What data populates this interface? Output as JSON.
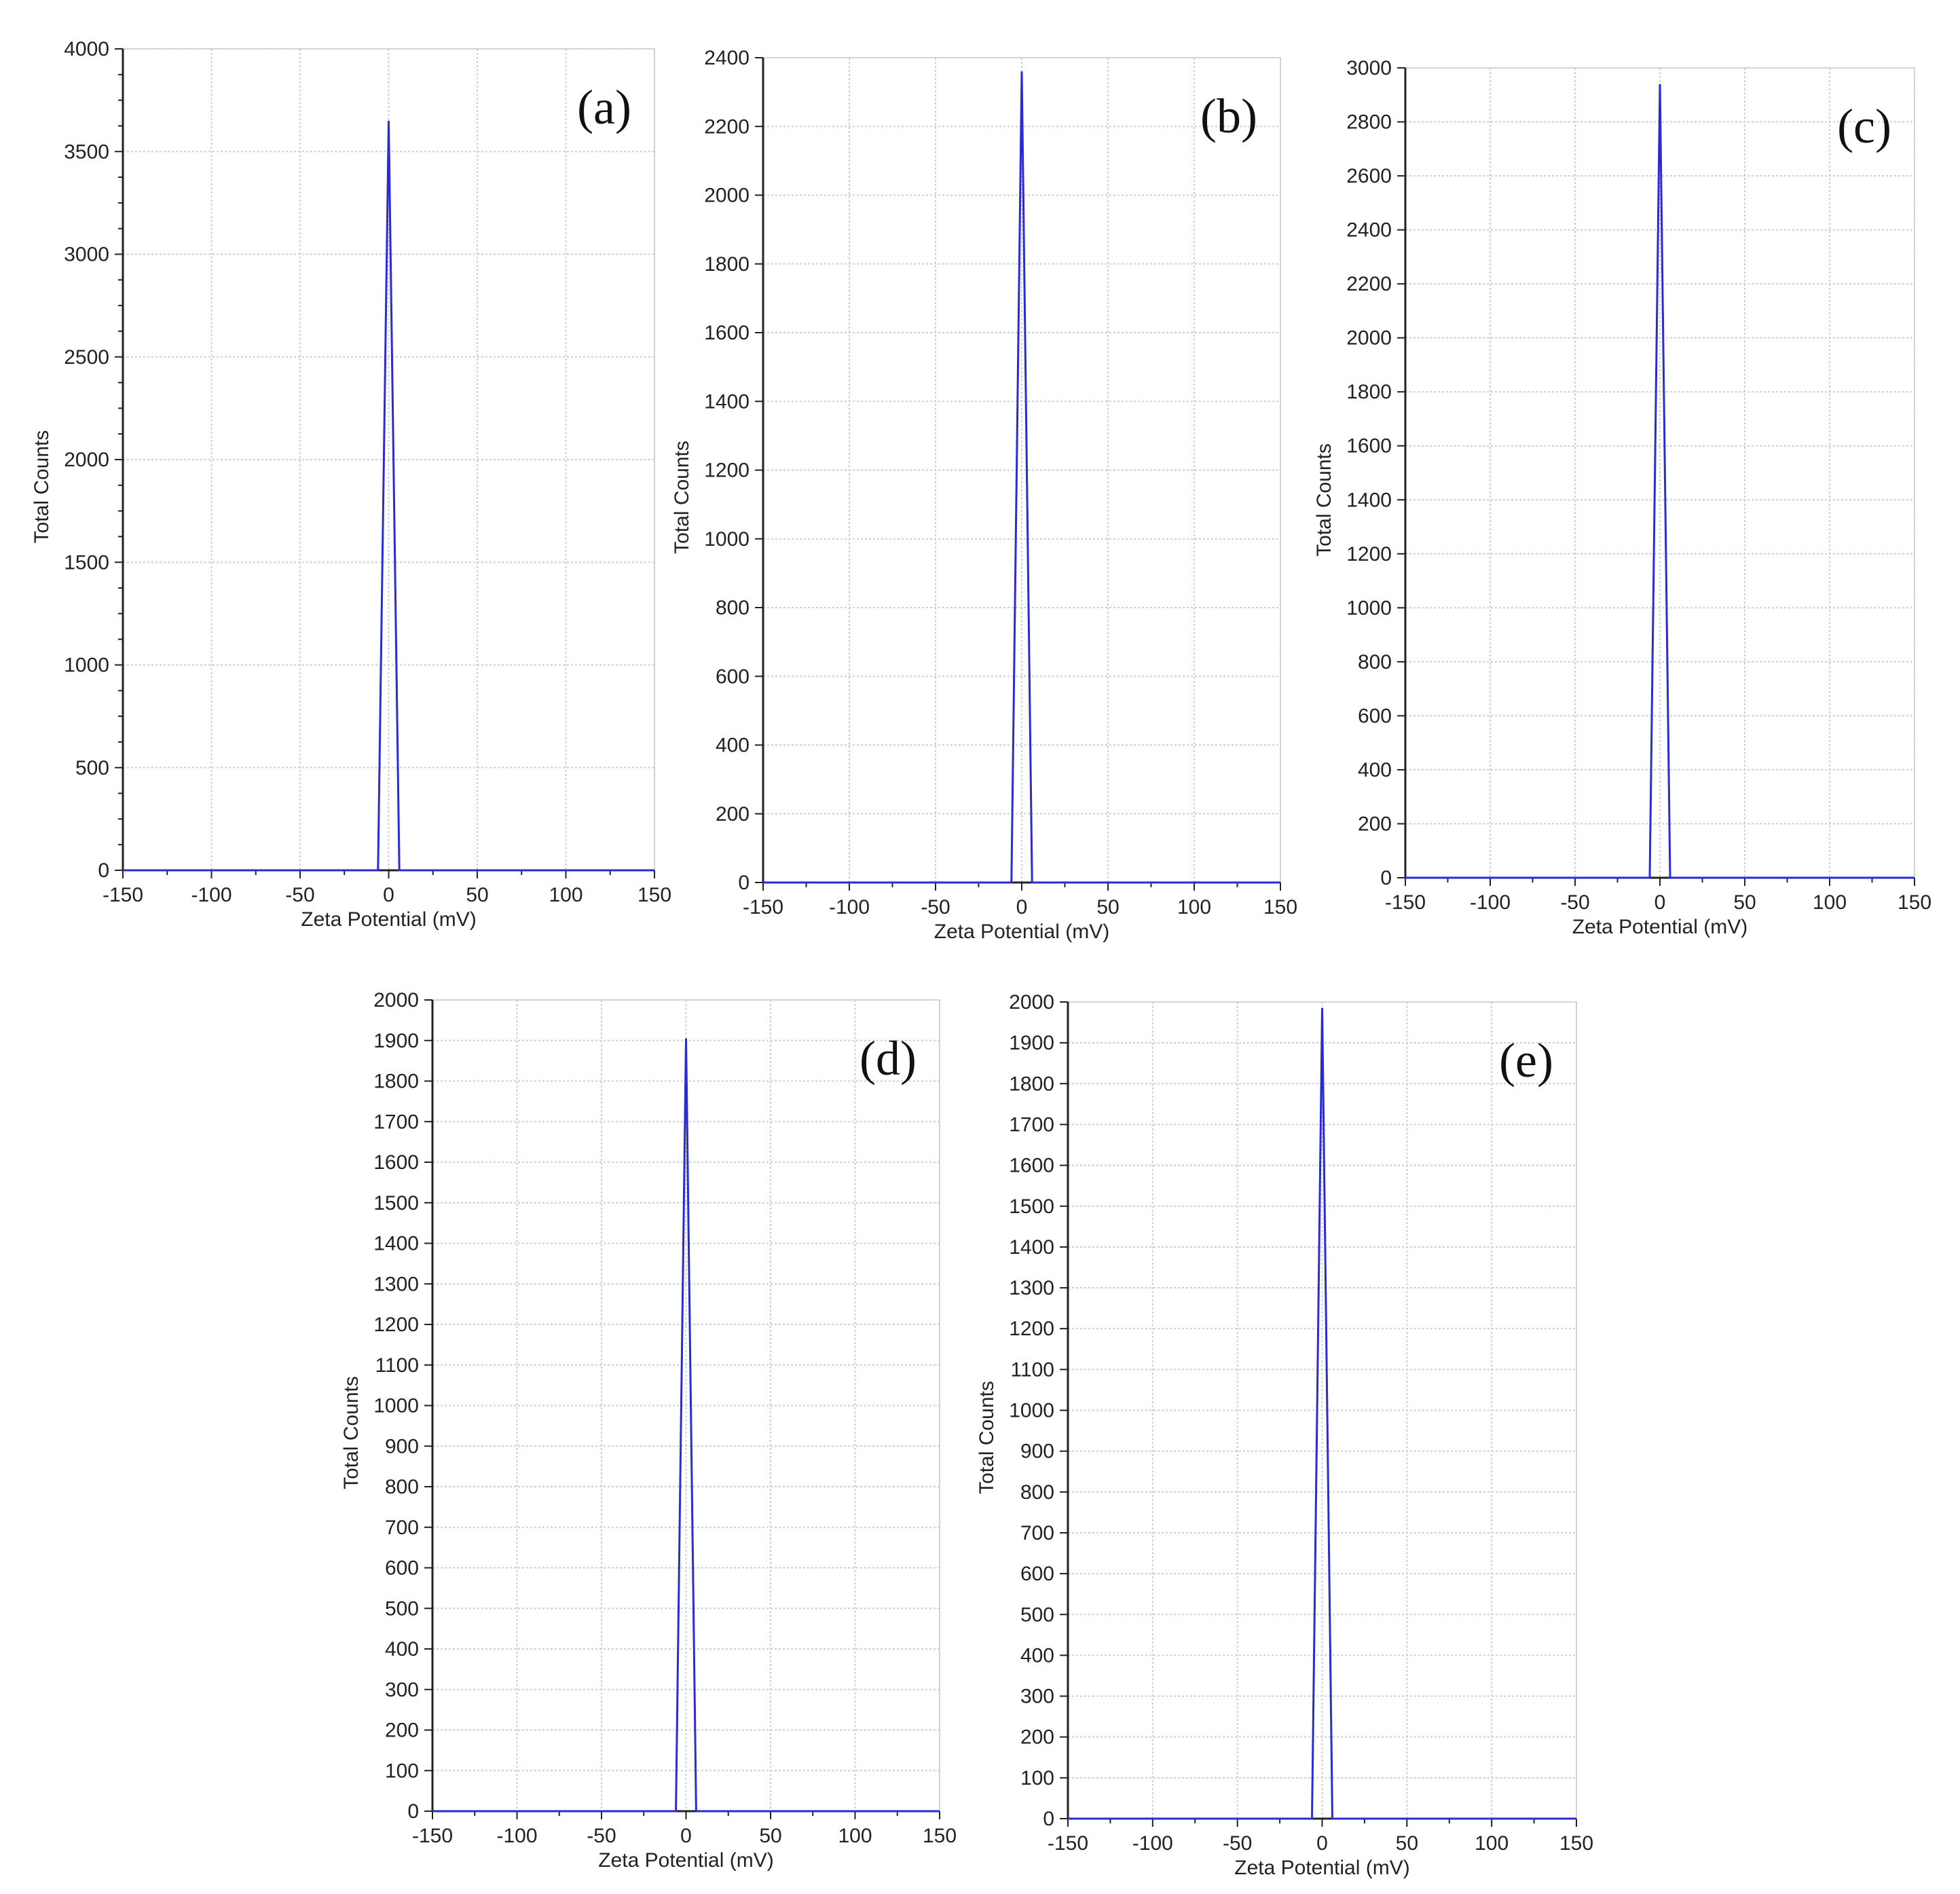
{
  "chart_data": [
    {
      "panel": "(a)",
      "type": "line",
      "xlabel": "Zeta Potential (mV)",
      "ylabel": "Total Counts",
      "xlim": [
        -150,
        150
      ],
      "ylim": [
        0,
        4000
      ],
      "xticks": [
        -150,
        -100,
        -50,
        0,
        50,
        100,
        150
      ],
      "yticks": [
        0,
        500,
        1000,
        1500,
        2000,
        2500,
        3000,
        3500,
        4000
      ],
      "grid": true,
      "series": [
        {
          "color": "#2a2ad6",
          "x": [
            -150,
            -6,
            0,
            6,
            150
          ],
          "y": [
            0,
            0,
            3650,
            0,
            0
          ]
        }
      ]
    },
    {
      "panel": "(b)",
      "type": "line",
      "xlabel": "Zeta Potential (mV)",
      "ylabel": "Total Counts",
      "xlim": [
        -150,
        150
      ],
      "ylim": [
        0,
        2400
      ],
      "xticks": [
        -150,
        -100,
        -50,
        0,
        50,
        100,
        150
      ],
      "yticks": [
        0,
        200,
        400,
        600,
        800,
        1000,
        1200,
        1400,
        1600,
        1800,
        2000,
        2200,
        2400
      ],
      "grid": true,
      "series": [
        {
          "color": "#2a2ad6",
          "x": [
            -150,
            -6,
            0,
            6,
            150
          ],
          "y": [
            0,
            0,
            2360,
            0,
            0
          ]
        }
      ]
    },
    {
      "panel": "(c)",
      "type": "line",
      "xlabel": "Zeta Potential (mV)",
      "ylabel": "Total Counts",
      "xlim": [
        -150,
        150
      ],
      "ylim": [
        0,
        3000
      ],
      "xticks": [
        -150,
        -100,
        -50,
        0,
        50,
        100,
        150
      ],
      "yticks": [
        0,
        200,
        400,
        600,
        800,
        1000,
        1200,
        1400,
        1600,
        1800,
        2000,
        2200,
        2400,
        2600,
        2800,
        3000
      ],
      "grid": true,
      "series": [
        {
          "color": "#2a2ad6",
          "x": [
            -150,
            -6,
            0,
            6,
            150
          ],
          "y": [
            0,
            0,
            2940,
            0,
            0
          ]
        }
      ]
    },
    {
      "panel": "(d)",
      "type": "line",
      "xlabel": "Zeta Potential (mV)",
      "ylabel": "Total Counts",
      "xlim": [
        -150,
        150
      ],
      "ylim": [
        0,
        2000
      ],
      "xticks": [
        -150,
        -100,
        -50,
        0,
        50,
        100,
        150
      ],
      "yticks": [
        0,
        100,
        200,
        300,
        400,
        500,
        600,
        700,
        800,
        900,
        1000,
        1100,
        1200,
        1300,
        1400,
        1500,
        1600,
        1700,
        1800,
        1900,
        2000
      ],
      "grid": true,
      "series": [
        {
          "color": "#2a2ad6",
          "x": [
            -150,
            -6,
            0,
            6,
            150
          ],
          "y": [
            0,
            0,
            1905,
            0,
            0
          ]
        }
      ]
    },
    {
      "panel": "(e)",
      "type": "line",
      "xlabel": "Zeta Potential (mV)",
      "ylabel": "Total Counts",
      "xlim": [
        -150,
        150
      ],
      "ylim": [
        0,
        2000
      ],
      "xticks": [
        -150,
        -100,
        -50,
        0,
        50,
        100,
        150
      ],
      "yticks": [
        0,
        100,
        200,
        300,
        400,
        500,
        600,
        700,
        800,
        900,
        1000,
        1100,
        1200,
        1300,
        1400,
        1500,
        1600,
        1700,
        1800,
        1900,
        2000
      ],
      "grid": true,
      "series": [
        {
          "color": "#2a2ad6",
          "x": [
            -150,
            -6,
            0,
            6,
            150
          ],
          "y": [
            0,
            0,
            1985,
            0,
            0
          ]
        }
      ]
    }
  ]
}
